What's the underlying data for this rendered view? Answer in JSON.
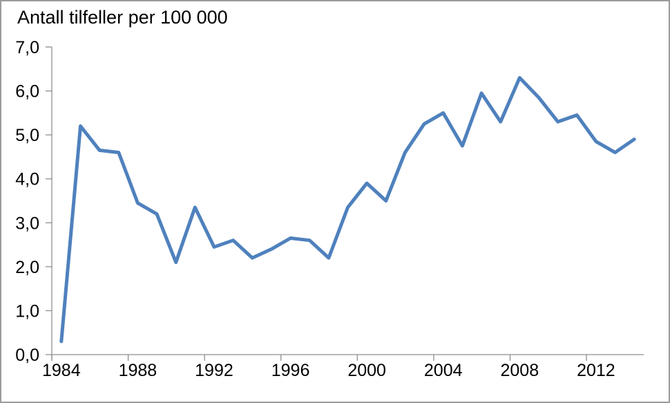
{
  "window": {
    "background": "#ffffff",
    "border_color": "#9b9b9b"
  },
  "chart_data": {
    "type": "line",
    "title": "Antall tilfeller per 100 000",
    "x": [
      1984,
      1985,
      1986,
      1987,
      1988,
      1989,
      1990,
      1991,
      1992,
      1993,
      1994,
      1995,
      1996,
      1997,
      1998,
      1999,
      2000,
      2001,
      2002,
      2003,
      2004,
      2005,
      2006,
      2007,
      2008,
      2009,
      2010,
      2011,
      2012,
      2013,
      2014
    ],
    "values": [
      0.3,
      5.2,
      4.65,
      4.6,
      3.45,
      3.2,
      2.1,
      3.35,
      2.45,
      2.6,
      2.2,
      2.4,
      2.65,
      2.6,
      2.2,
      3.35,
      3.9,
      3.5,
      4.6,
      5.25,
      5.5,
      4.75,
      5.95,
      5.3,
      6.3,
      5.85,
      5.3,
      5.45,
      4.85,
      4.6,
      4.9
    ],
    "xlabel": "",
    "ylabel": "",
    "ylim": [
      0,
      7
    ],
    "ytick_labels": [
      "0,0",
      "1,0",
      "2,0",
      "3,0",
      "4,0",
      "5,0",
      "6,0",
      "7,0"
    ],
    "xtick_labels": [
      "1984",
      "1988",
      "1992",
      "1996",
      "2000",
      "2004",
      "2008",
      "2012"
    ],
    "xtick_interval": 4,
    "grid": false,
    "legend": "none",
    "line_color": "#4F81BD",
    "axis_color": "#8e8e8e",
    "text_color": "#000000"
  }
}
